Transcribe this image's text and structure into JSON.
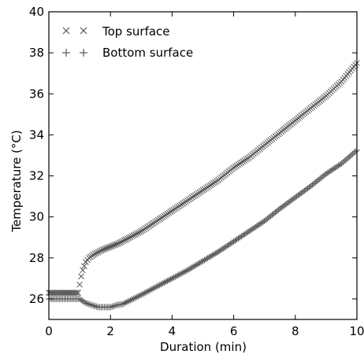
{
  "chart_data": {
    "type": "scatter",
    "title": "",
    "xlabel": "Duration (min)",
    "ylabel": "Temperature (°C)",
    "xlim": [
      0,
      10
    ],
    "ylim": [
      25,
      40
    ],
    "xticks": [
      "0",
      "2",
      "4",
      "6",
      "8",
      "10"
    ],
    "yticks": [
      "26",
      "28",
      "30",
      "32",
      "34",
      "36",
      "38",
      "40"
    ],
    "grid": false,
    "legend": {
      "position": "top-left",
      "entries": [
        "Top surface",
        "Bottom surface"
      ]
    },
    "series": [
      {
        "name": "Top surface",
        "marker": "x",
        "color": "#555555",
        "x": [
          0,
          0.2,
          0.4,
          0.6,
          0.8,
          0.95,
          1.0,
          1.05,
          1.1,
          1.15,
          1.2,
          1.3,
          1.5,
          1.75,
          2.0,
          2.25,
          2.5,
          2.75,
          3.0,
          3.5,
          4.0,
          4.5,
          5.0,
          5.5,
          6.0,
          6.5,
          7.0,
          7.5,
          8.0,
          8.5,
          9.0,
          9.5,
          10.0
        ],
        "y": [
          26.3,
          26.3,
          26.3,
          26.3,
          26.3,
          26.3,
          26.7,
          27.1,
          27.4,
          27.6,
          27.8,
          28.0,
          28.2,
          28.4,
          28.55,
          28.7,
          28.9,
          29.1,
          29.3,
          29.8,
          30.3,
          30.8,
          31.3,
          31.8,
          32.4,
          32.9,
          33.5,
          34.1,
          34.7,
          35.3,
          35.9,
          36.6,
          37.5
        ]
      },
      {
        "name": "Bottom surface",
        "marker": "+",
        "color": "#555555",
        "x": [
          0,
          0.2,
          0.4,
          0.6,
          0.8,
          1.0,
          1.2,
          1.4,
          1.6,
          1.8,
          2.0,
          2.2,
          2.4,
          2.6,
          2.8,
          3.0,
          3.5,
          4.0,
          4.5,
          5.0,
          5.5,
          6.0,
          6.5,
          7.0,
          7.5,
          8.0,
          8.5,
          9.0,
          9.5,
          10.0
        ],
        "y": [
          26.0,
          26.0,
          26.0,
          26.0,
          26.0,
          26.0,
          25.8,
          25.7,
          25.6,
          25.6,
          25.6,
          25.7,
          25.75,
          25.9,
          26.05,
          26.2,
          26.6,
          27.0,
          27.4,
          27.85,
          28.3,
          28.8,
          29.3,
          29.8,
          30.4,
          30.95,
          31.5,
          32.1,
          32.6,
          33.25
        ]
      }
    ]
  }
}
